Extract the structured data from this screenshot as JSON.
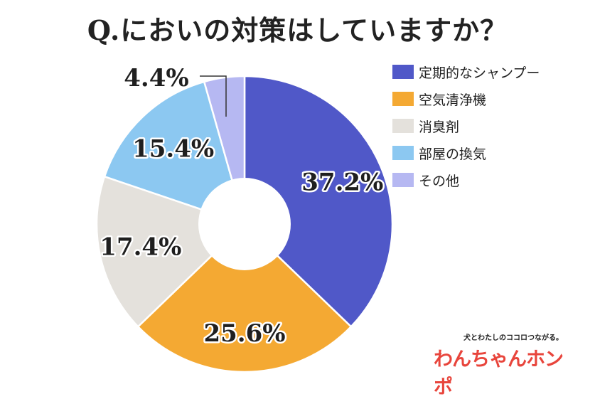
{
  "page": {
    "title": "Q.においの対策はしていますか？"
  },
  "chart_data": {
    "type": "pie",
    "title": "Q.においの対策はしていますか？",
    "donut": true,
    "legend_position": "right",
    "slices": [
      {
        "name": "定期的なシャンプー",
        "value": 37.2,
        "label": "37.2%",
        "color": "#5058c8"
      },
      {
        "name": "空気清浄機",
        "value": 25.6,
        "label": "25.6%",
        "color": "#f4a933"
      },
      {
        "name": "消臭剤",
        "value": 17.4,
        "label": "17.4%",
        "color": "#e4e1dc"
      },
      {
        "name": "部屋の換気",
        "value": 15.4,
        "label": "15.4%",
        "color": "#8cc8f1"
      },
      {
        "name": "その他",
        "value": 4.4,
        "label": "4.4%",
        "color": "#b6b8f2"
      }
    ]
  },
  "brand": {
    "tagline": "犬とわたしのココロつながる。",
    "logo_text": "わんちゃんホンポ"
  }
}
